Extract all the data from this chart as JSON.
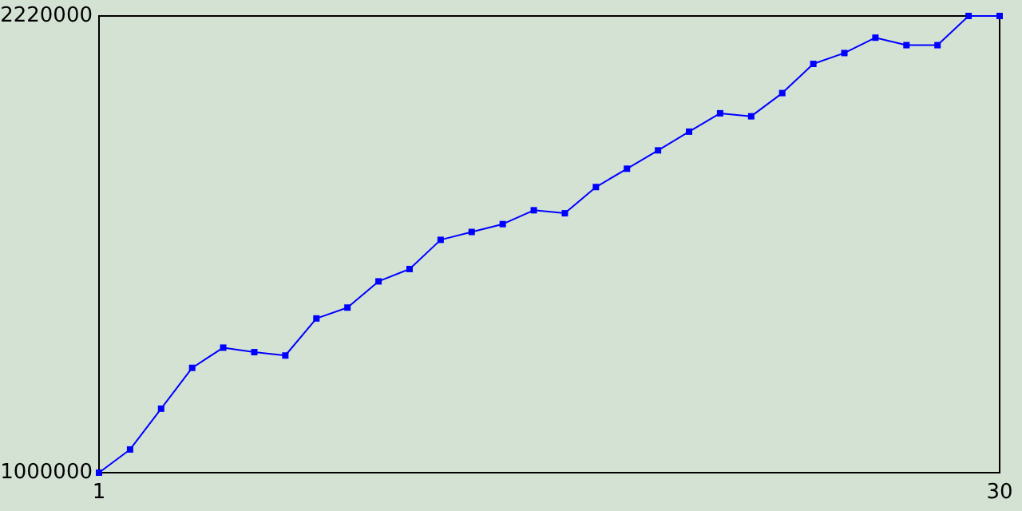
{
  "chart_data": {
    "type": "line",
    "x": [
      1,
      2,
      3,
      4,
      5,
      6,
      7,
      8,
      9,
      10,
      11,
      12,
      13,
      14,
      15,
      16,
      17,
      18,
      19,
      20,
      21,
      22,
      23,
      24,
      25,
      26,
      27,
      28,
      29,
      30
    ],
    "series": [
      {
        "color": "#0000ff",
        "values": [
          1000000,
          1062000,
          1171000,
          1280000,
          1334000,
          1322000,
          1313000,
          1412000,
          1441000,
          1511000,
          1544000,
          1622000,
          1643000,
          1664000,
          1701000,
          1693000,
          1763000,
          1812000,
          1861000,
          1911000,
          1960000,
          1952000,
          2014000,
          2092000,
          2121000,
          2162000,
          2142000,
          2142000,
          2220000,
          2220000
        ]
      }
    ],
    "xlim": [
      1,
      30
    ],
    "xticks": [
      1,
      30
    ],
    "ylim": [
      1000000,
      2220000
    ],
    "yticks": [
      1000000,
      2220000
    ],
    "marker": "square",
    "line_style": "solid"
  }
}
